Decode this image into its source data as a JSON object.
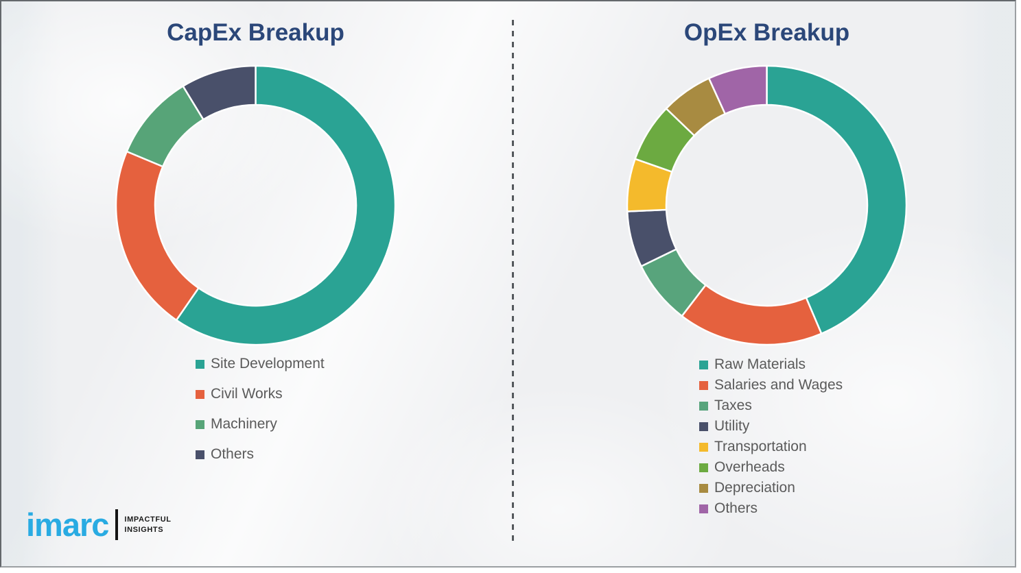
{
  "chart_data": [
    {
      "type": "pie",
      "variant": "donut",
      "title": "CapEx Breakup",
      "labels": [
        "Site Development",
        "Civil Works",
        "Machinery",
        "Others"
      ],
      "values": [
        59.6,
        21.7,
        10.0,
        8.7
      ],
      "colors": [
        "#2aa394",
        "#e5613e",
        "#57a478",
        "#49506a"
      ],
      "start_angle_deg": 0,
      "clockwise": true,
      "hole_ratio": 0.72,
      "legend_position": "bottom-left",
      "title_color": "#2b4779"
    },
    {
      "type": "pie",
      "variant": "donut",
      "title": "OpEx Breakup",
      "labels": [
        "Raw Materials",
        "Salaries and Wages",
        "Taxes",
        "Utility",
        "Transportation",
        "Overheads",
        "Depreciation",
        "Others"
      ],
      "values": [
        43.6,
        16.8,
        7.4,
        6.5,
        6.1,
        6.8,
        6.0,
        6.8
      ],
      "colors": [
        "#2aa394",
        "#e5613e",
        "#58a47c",
        "#49506a",
        "#f4ba2c",
        "#6caa41",
        "#a88b41",
        "#a065a7"
      ],
      "start_angle_deg": 0,
      "clockwise": true,
      "hole_ratio": 0.72,
      "legend_position": "bottom-left",
      "title_color": "#2b4779"
    }
  ],
  "logo": {
    "brand": "imarc",
    "brand_color": "#29abe2",
    "tagline_line1": "IMPACTFUL",
    "tagline_line2": "INSIGHTS"
  },
  "page": {
    "background": "#eff0f2",
    "divider_style": "vertical-dashed"
  }
}
